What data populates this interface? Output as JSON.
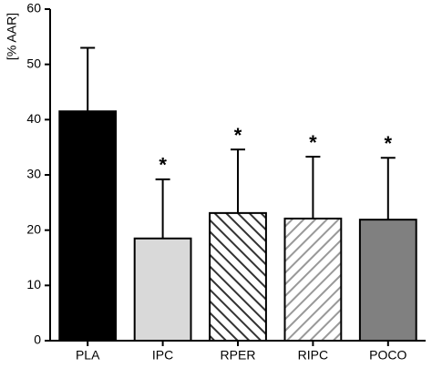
{
  "chart_data": {
    "type": "bar",
    "ylabel": "[% AAR]",
    "categories": [
      "PLA",
      "IPC",
      "RPER",
      "RIPC",
      "POCO"
    ],
    "values": [
      41.5,
      18.5,
      23.1,
      22.1,
      21.9
    ],
    "errors": [
      11.5,
      10.7,
      11.5,
      11.2,
      11.2
    ],
    "annotations": [
      null,
      "*",
      "*",
      "*",
      "*"
    ],
    "colors": [
      "#000000",
      "#d9d9d9",
      "#333333",
      "#999999",
      "#808080"
    ],
    "patterns": [
      "solid",
      "solid",
      "backslash",
      "slash",
      "solid"
    ],
    "ylim": [
      0,
      60
    ],
    "yticks": [
      0,
      10,
      20,
      30,
      40,
      50,
      60
    ]
  }
}
